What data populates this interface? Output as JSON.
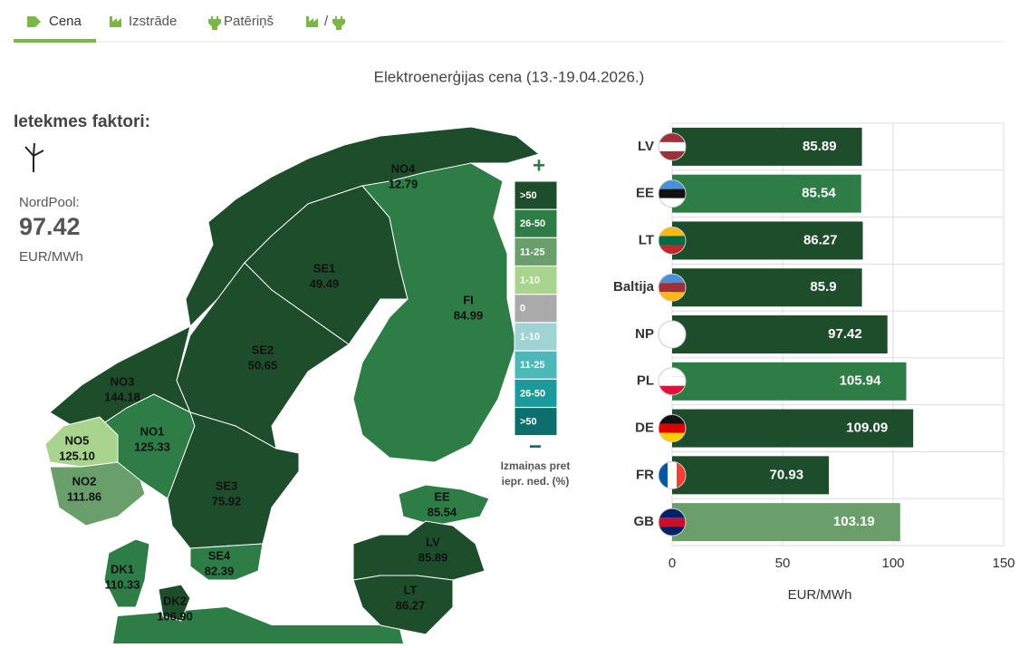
{
  "tabs": [
    "Cena",
    "Izstrāde",
    "Patēriņš",
    "/"
  ],
  "title": "Elektroenerģijas cena (13.-19.04.2026.)",
  "factors": {
    "heading": "Ietekmes faktori:",
    "label": "NordPool:",
    "value": "97.42",
    "unit": "EUR/MWh"
  },
  "map": {
    "regions": [
      {
        "name": "NO4",
        "value": "12.79",
        "color": "#1e4d2b"
      },
      {
        "name": "SE1",
        "value": "49.49",
        "color": "#1e4d2b"
      },
      {
        "name": "FI",
        "value": "84.99",
        "color": "#2e7d46"
      },
      {
        "name": "SE2",
        "value": "50.65",
        "color": "#1e4d2b"
      },
      {
        "name": "NO3",
        "value": "144.18",
        "color": "#1e4d2b"
      },
      {
        "name": "NO1",
        "value": "125.33",
        "color": "#2e7d46"
      },
      {
        "name": "NO5",
        "value": "125.10",
        "color": "#a8d48e"
      },
      {
        "name": "NO2",
        "value": "111.86",
        "color": "#6a9e6a"
      },
      {
        "name": "SE3",
        "value": "75.92",
        "color": "#1e4d2b"
      },
      {
        "name": "SE4",
        "value": "82.39",
        "color": "#2e7d46"
      },
      {
        "name": "DK1",
        "value": "110.33",
        "color": "#2e7d46"
      },
      {
        "name": "DK2",
        "value": "106.90",
        "color": "#1e4d2b"
      },
      {
        "name": "EE",
        "value": "85.54",
        "color": "#2e7d46"
      },
      {
        "name": "LV",
        "value": "85.89",
        "color": "#1e4d2b"
      },
      {
        "name": "LT",
        "value": "86.27",
        "color": "#1e4d2b"
      }
    ],
    "legend": {
      "plus": "+",
      "minus": "−",
      "caption": [
        "Izmaiņas pret",
        "iepr. ned. (%)"
      ],
      "items": [
        {
          "label": ">50",
          "color": "#1e4d2b"
        },
        {
          "label": "26-50",
          "color": "#2e7d46"
        },
        {
          "label": "11-25",
          "color": "#6a9e6a"
        },
        {
          "label": "1-10",
          "color": "#a8d48e"
        },
        {
          "label": "0",
          "color": "#aaaaaa"
        },
        {
          "label": "1-10",
          "color": "#a0d4d4"
        },
        {
          "label": "11-25",
          "color": "#4cb8b8"
        },
        {
          "label": "26-50",
          "color": "#1a9a9a"
        },
        {
          "label": ">50",
          "color": "#0e6e6e"
        }
      ]
    }
  },
  "chart_data": {
    "type": "bar",
    "orientation": "horizontal",
    "categories": [
      "LV",
      "EE",
      "LT",
      "Baltija",
      "NP",
      "PL",
      "DE",
      "FR",
      "GB"
    ],
    "values": [
      85.89,
      85.54,
      86.27,
      85.9,
      97.42,
      105.94,
      109.09,
      70.93,
      103.19
    ],
    "colors": [
      "#1e4d2b",
      "#2e7d46",
      "#1e4d2b",
      "#1e4d2b",
      "#1e4d2b",
      "#2e7d46",
      "#1e4d2b",
      "#1e4d2b",
      "#6a9e6a"
    ],
    "xlim": [
      0,
      150
    ],
    "xticks": [
      0,
      50,
      100,
      150
    ],
    "xlabel": "EUR/MWh",
    "grid": true
  }
}
